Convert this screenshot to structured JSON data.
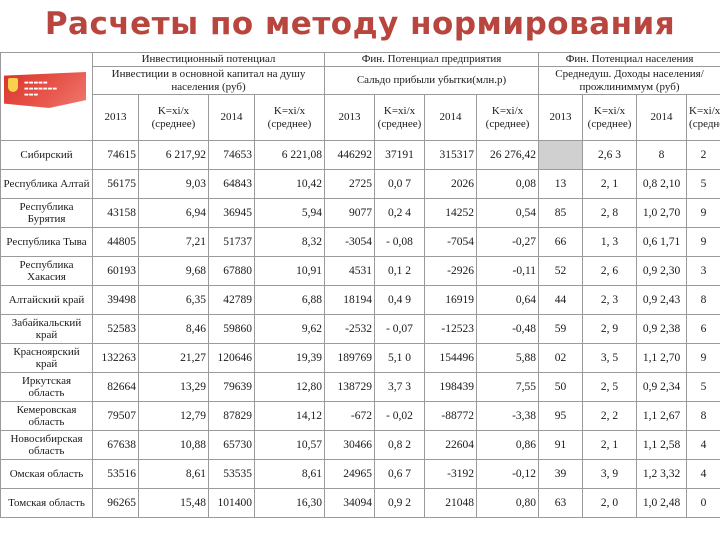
{
  "page": {
    "title": "Расчеты по методу нормирования"
  },
  "header": {
    "group_invest": "Инвестиционный потенциал",
    "group_fin_enterprise": "Фин. Потенциал предприятия",
    "group_fin_population": "Фин. Потенциал населения",
    "invest_sub": "Инвестиции в основной капитал на душу населения (руб)",
    "fin_enterprise_sub": "Сальдо прибыли убытки(млн.р)",
    "fin_population_sub": "Среднедуш. Доходы населения/ прожлиниммум (руб)",
    "year_2013": "2013",
    "year_2014": "2014",
    "k_avg": "K=xi/x (среднее)"
  },
  "rows": [
    {
      "region": "Сибирский",
      "inv2013": "74615",
      "k1": "6 217,92",
      "inv2014": "74653",
      "k2": "6 221,08",
      "ent2013": "446292",
      "k3": "37191",
      "ent2014": "315317",
      "k4": "26 276,42",
      "pop2013": "",
      "k5": "2,6 3",
      "pop2014": "8",
      "k6": "2"
    },
    {
      "region": "Республика Алтай",
      "inv2013": "56175",
      "k1": "9,03",
      "inv2014": "64843",
      "k2": "10,42",
      "ent2013": "2725",
      "k3": "0,0 7",
      "ent2014": "2026",
      "k4": "0,08",
      "pop2013": "13",
      "k5": "2, 1",
      "pop2014": "0,8 2,10",
      "k6": "5"
    },
    {
      "region": "Республика Бурятия",
      "inv2013": "43158",
      "k1": "6,94",
      "inv2014": "36945",
      "k2": "5,94",
      "ent2013": "9077",
      "k3": "0,2 4",
      "ent2014": "14252",
      "k4": "0,54",
      "pop2013": "85",
      "k5": "2, 8",
      "pop2014": "1,0 2,70",
      "k6": "9"
    },
    {
      "region": "Республика Тыва",
      "inv2013": "44805",
      "k1": "7,21",
      "inv2014": "51737",
      "k2": "8,32",
      "ent2013": "-3054",
      "k3": "- 0,08",
      "ent2014": "-7054",
      "k4": "-0,27",
      "pop2013": "66",
      "k5": "1, 3",
      "pop2014": "0,6 1,71",
      "k6": "9"
    },
    {
      "region": "Республика Хакасия",
      "inv2013": "60193",
      "k1": "9,68",
      "inv2014": "67880",
      "k2": "10,91",
      "ent2013": "4531",
      "k3": "0,1 2",
      "ent2014": "-2926",
      "k4": "-0,11",
      "pop2013": "52",
      "k5": "2, 6",
      "pop2014": "0,9 2,30",
      "k6": "3"
    },
    {
      "region": "Алтайский край",
      "inv2013": "39498",
      "k1": "6,35",
      "inv2014": "42789",
      "k2": "6,88",
      "ent2013": "18194",
      "k3": "0,4 9",
      "ent2014": "16919",
      "k4": "0,64",
      "pop2013": "44",
      "k5": "2, 3",
      "pop2014": "0,9 2,43",
      "k6": "8"
    },
    {
      "region": "Забайкальский край",
      "inv2013": "52583",
      "k1": "8,46",
      "inv2014": "59860",
      "k2": "9,62",
      "ent2013": "-2532",
      "k3": "- 0,07",
      "ent2014": "-12523",
      "k4": "-0,48",
      "pop2013": "59",
      "k5": "2, 9",
      "pop2014": "0,9 2,38",
      "k6": "6"
    },
    {
      "region": "Красноярский край",
      "inv2013": "132263",
      "k1": "21,27",
      "inv2014": "120646",
      "k2": "19,39",
      "ent2013": "189769",
      "k3": "5,1 0",
      "ent2014": "154496",
      "k4": "5,88",
      "pop2013": "02",
      "k5": "3, 5",
      "pop2014": "1,1 2,70",
      "k6": "9"
    },
    {
      "region": "Иркутская область",
      "inv2013": "82664",
      "k1": "13,29",
      "inv2014": "79639",
      "k2": "12,80",
      "ent2013": "138729",
      "k3": "3,7 3",
      "ent2014": "198439",
      "k4": "7,55",
      "pop2013": "50",
      "k5": "2, 5",
      "pop2014": "0,9 2,34",
      "k6": "5"
    },
    {
      "region": "Кемеровская область",
      "inv2013": "79507",
      "k1": "12,79",
      "inv2014": "87829",
      "k2": "14,12",
      "ent2013": "-672",
      "k3": "- 0,02",
      "ent2014": "-88772",
      "k4": "-3,38",
      "pop2013": "95",
      "k5": "2, 2",
      "pop2014": "1,1 2,67",
      "k6": "8"
    },
    {
      "region": "Новосибирская область",
      "inv2013": "67638",
      "k1": "10,88",
      "inv2014": "65730",
      "k2": "10,57",
      "ent2013": "30466",
      "k3": "0,8 2",
      "ent2014": "22604",
      "k4": "0,86",
      "pop2013": "91",
      "k5": "2, 1",
      "pop2014": "1,1 2,58",
      "k6": "4"
    },
    {
      "region": "Омская область",
      "inv2013": "53516",
      "k1": "8,61",
      "inv2014": "53535",
      "k2": "8,61",
      "ent2013": "24965",
      "k3": "0,6 7",
      "ent2014": "-3192",
      "k4": "-0,12",
      "pop2013": "39",
      "k5": "3, 9",
      "pop2014": "1,2 3,32",
      "k6": "4"
    },
    {
      "region": "Томская область",
      "inv2013": "96265",
      "k1": "15,48",
      "inv2014": "101400",
      "k2": "16,30",
      "ent2013": "34094",
      "k3": "0,9 2",
      "ent2014": "21048",
      "k4": "0,80",
      "pop2013": "63",
      "k5": "2, 0",
      "pop2014": "1,0 2,48",
      "k6": "0"
    }
  ]
}
